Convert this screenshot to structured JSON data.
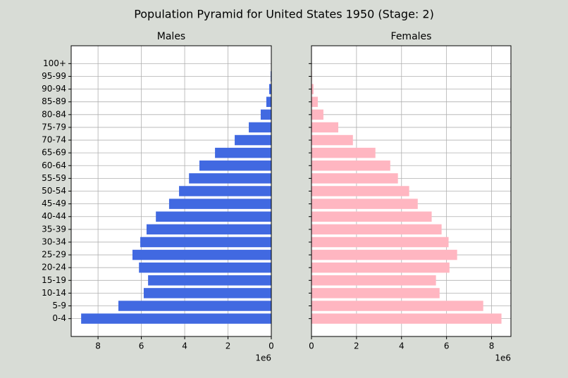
{
  "title": "Population Pyramid for United States 1950 (Stage: 2)",
  "chart_data": [
    {
      "type": "barh",
      "title": "Males",
      "color": "#4169e1",
      "grid": true,
      "offset_label": "1e6",
      "categories": [
        "0-4",
        "5-9",
        "10-14",
        "15-19",
        "20-24",
        "25-29",
        "30-34",
        "35-39",
        "40-44",
        "45-49",
        "50-54",
        "55-59",
        "60-64",
        "65-69",
        "70-74",
        "75-79",
        "80-84",
        "85-89",
        "90-94",
        "95-99",
        "100+"
      ],
      "values": [
        8780000,
        7060000,
        5890000,
        5690000,
        6110000,
        6410000,
        6050000,
        5760000,
        5330000,
        4720000,
        4260000,
        3800000,
        3320000,
        2600000,
        1690000,
        1040000,
        490000,
        230000,
        100000,
        30000,
        5000
      ],
      "xlim": [
        9240000,
        0
      ],
      "xticks": [
        {
          "value": 8000000,
          "label": "8"
        },
        {
          "value": 6000000,
          "label": "6"
        },
        {
          "value": 4000000,
          "label": "4"
        },
        {
          "value": 2000000,
          "label": "2"
        },
        0
      ]
    },
    {
      "type": "barh",
      "title": "Females",
      "color": "#ffb6c1",
      "grid": true,
      "offset_label": "1e6",
      "categories": [
        null,
        null,
        null,
        null,
        null,
        null,
        null,
        null,
        null,
        null,
        null,
        null,
        null,
        null,
        null,
        null,
        null,
        null,
        null,
        null,
        null
      ],
      "values": [
        8440000,
        7630000,
        5690000,
        5530000,
        6130000,
        6470000,
        6090000,
        5780000,
        5340000,
        4720000,
        4340000,
        3840000,
        3500000,
        2840000,
        1840000,
        1190000,
        530000,
        280000,
        90000,
        20000,
        4000
      ],
      "xlim": [
        0,
        8860000
      ],
      "xticks": [
        0,
        {
          "value": 2000000,
          "label": "2"
        },
        {
          "value": 4000000,
          "label": "4"
        },
        {
          "value": 6000000,
          "label": "6"
        },
        {
          "value": 8000000,
          "label": "8"
        }
      ]
    }
  ]
}
